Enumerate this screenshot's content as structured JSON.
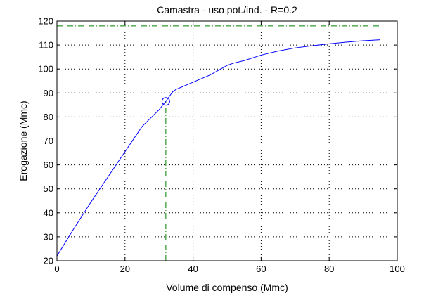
{
  "chart_data": {
    "type": "line",
    "title": "Camastra  -  uso pot./ind.  -   R=0.2",
    "xlabel": "Volume di compenso (Mmc)",
    "ylabel": "Erogazione (Mmc)",
    "xlim": [
      0,
      100
    ],
    "ylim": [
      20,
      120
    ],
    "xticks": [
      0,
      20,
      40,
      60,
      80,
      100
    ],
    "yticks": [
      20,
      30,
      40,
      50,
      60,
      70,
      80,
      90,
      100,
      110,
      120
    ],
    "grid": true,
    "series": [
      {
        "color": "#0000ff",
        "style": "solid",
        "x": [
          0,
          5,
          10,
          15,
          20,
          25,
          30,
          32,
          34,
          35,
          40,
          45,
          50,
          52,
          55,
          60,
          65,
          70,
          75,
          80,
          85,
          90,
          95
        ],
        "y": [
          22,
          33.5,
          44.5,
          55,
          65.5,
          76,
          83,
          86.5,
          90.5,
          91.5,
          94.5,
          97.5,
          101.5,
          102.5,
          103.5,
          105.8,
          107.5,
          108.8,
          109.7,
          110.5,
          111.2,
          111.8,
          112.2
        ]
      }
    ],
    "reference_lines": [
      {
        "orientation": "horizontal",
        "value": 118,
        "from": 0,
        "to": 95,
        "color": "#008000",
        "style": "dash-dot"
      },
      {
        "orientation": "vertical",
        "value": 32,
        "from": 20,
        "to": 86.5,
        "color": "#008000",
        "style": "dash-dot"
      }
    ],
    "marker": {
      "x": 32,
      "y": 86.5,
      "shape": "circle",
      "color": "#0000ff"
    }
  }
}
